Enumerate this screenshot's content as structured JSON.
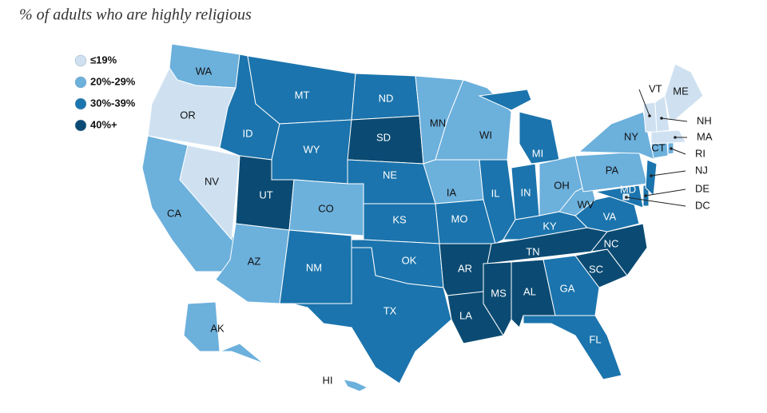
{
  "title": "% of adults who are highly religious",
  "legend": [
    {
      "label": "≤19%",
      "color": "#cfe1f1",
      "members": [
        "OR",
        "NV",
        "VT",
        "NH",
        "ME",
        "MA",
        "DC"
      ]
    },
    {
      "label": "20%-29%",
      "color": "#6cb0dc",
      "members": [
        "WA",
        "CA",
        "AZ",
        "CO",
        "MN",
        "IA",
        "WI",
        "OH",
        "WV",
        "PA",
        "NY",
        "CT",
        "RI",
        "AK",
        "HI"
      ]
    },
    {
      "label": "30%-39%",
      "color": "#1b74ad",
      "members": [
        "ID",
        "MT",
        "WY",
        "NM",
        "ND",
        "NE",
        "KS",
        "OK",
        "TX",
        "MO",
        "IL",
        "IN",
        "MI",
        "KY",
        "VA",
        "GA",
        "FL",
        "NJ",
        "MD",
        "DE"
      ]
    },
    {
      "label": "40%+",
      "color": "#0b4b73",
      "members": [
        "UT",
        "SD",
        "AR",
        "LA",
        "MS",
        "AL",
        "TN",
        "NC",
        "SC"
      ]
    }
  ],
  "states": [
    "WA",
    "OR",
    "CA",
    "NV",
    "ID",
    "MT",
    "WY",
    "UT",
    "CO",
    "AZ",
    "NM",
    "ND",
    "SD",
    "NE",
    "KS",
    "OK",
    "TX",
    "MN",
    "IA",
    "MO",
    "AR",
    "LA",
    "WI",
    "IL",
    "IN",
    "MI",
    "OH",
    "KY",
    "TN",
    "MS",
    "AL",
    "GA",
    "FL",
    "SC",
    "NC",
    "VA",
    "WV",
    "PA",
    "NY",
    "MD",
    "DE",
    "NJ",
    "CT",
    "RI",
    "MA",
    "VT",
    "NH",
    "ME",
    "DC",
    "AK",
    "HI"
  ]
}
